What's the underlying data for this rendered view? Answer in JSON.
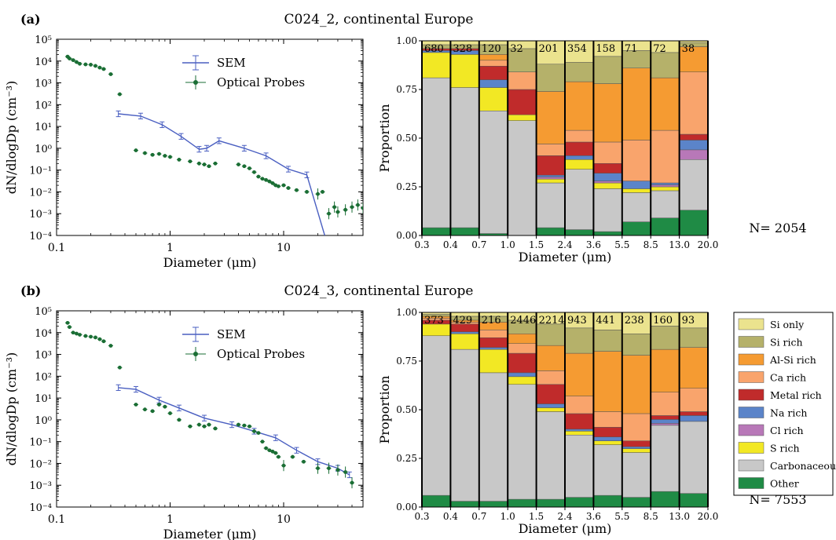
{
  "legend_title": "",
  "chart_data": [
    {
      "panel": "(a)",
      "title": "C024_2, continental Europe",
      "type": "line",
      "xlabel": "Diameter (μm)",
      "ylabel": "dN/dlogDp (cm⁻³)",
      "xscale": "log",
      "yscale": "log",
      "xlim": [
        0.1,
        50
      ],
      "ylim": [
        0.0001,
        100000
      ],
      "xticks": [
        "0.1",
        "1",
        "10"
      ],
      "yticks": [
        "10⁻⁴",
        "10⁻³",
        "10⁻²",
        "10⁻¹",
        "10⁰",
        "10¹",
        "10²",
        "10³",
        "10⁴",
        "10⁵"
      ],
      "legend": "top-center",
      "series": [
        {
          "name": "SEM",
          "color": "#4a5fc1",
          "x": [
            0.35,
            0.55,
            0.85,
            1.25,
            1.8,
            2.1,
            2.7,
            4.5,
            7,
            11,
            16,
            23
          ],
          "y": [
            38,
            30,
            12,
            3.5,
            0.9,
            1.0,
            2.2,
            1.0,
            0.45,
            0.11,
            0.06,
            0.0001
          ]
        },
        {
          "name": "Optical Probes",
          "color": "#1a6e34",
          "x": [
            0.125,
            0.13,
            0.14,
            0.15,
            0.16,
            0.18,
            0.2,
            0.22,
            0.24,
            0.26,
            0.3,
            0.36,
            0.5,
            0.6,
            0.7,
            0.8,
            0.9,
            1.0,
            1.2,
            1.5,
            1.8,
            2.0,
            2.2,
            2.5,
            4.0,
            4.5,
            5.0,
            5.5,
            6.0,
            6.5,
            7.0,
            7.5,
            8.0,
            8.5,
            9.0,
            10,
            11,
            13,
            16,
            20,
            22,
            25,
            28,
            30,
            35,
            40,
            45,
            50
          ],
          "y": [
            16000,
            13000,
            11000,
            9000,
            7500,
            7000,
            6800,
            6000,
            5000,
            4300,
            2500,
            300,
            0.8,
            0.6,
            0.5,
            0.55,
            0.45,
            0.4,
            0.3,
            0.25,
            0.2,
            0.18,
            0.15,
            0.2,
            0.18,
            0.15,
            0.12,
            0.08,
            0.05,
            0.04,
            0.035,
            0.03,
            0.025,
            0.02,
            0.018,
            0.02,
            0.015,
            0.012,
            0.01,
            0.008,
            0.01,
            0.001,
            0.002,
            0.0012,
            0.0015,
            0.002,
            0.0025,
            0.0018
          ]
        }
      ]
    },
    {
      "panel": "(a)",
      "type": "bar",
      "stacked": true,
      "xlabel": "Diameter (μm)",
      "ylabel": "Proportion",
      "ylim": [
        0,
        1
      ],
      "yticks": [
        "0.00",
        "0.25",
        "0.50",
        "0.75",
        "1.00"
      ],
      "bin_edges": [
        "0.3",
        "0.4",
        "0.7",
        "1.0",
        "1.5",
        "2.4",
        "3.6",
        "5.5",
        "8.5",
        "13.0",
        "20.0"
      ],
      "counts": [
        "680",
        "328",
        "120",
        "32",
        "201",
        "354",
        "158",
        "71",
        "72",
        "38"
      ],
      "n_label": "N= 2054",
      "series": [
        {
          "name": "Other",
          "color": "#1f8b45",
          "values": [
            0.04,
            0.04,
            0.01,
            0,
            0.04,
            0.03,
            0.02,
            0.07,
            0.09,
            0.13
          ]
        },
        {
          "name": "Carbonaceous",
          "color": "#c8c8c8",
          "values": [
            0.77,
            0.72,
            0.63,
            0.59,
            0.23,
            0.31,
            0.22,
            0.15,
            0.14,
            0.26
          ]
        },
        {
          "name": "S rich",
          "color": "#f2e824",
          "values": [
            0.13,
            0.17,
            0.12,
            0.03,
            0.02,
            0.05,
            0.03,
            0.02,
            0.02,
            0
          ]
        },
        {
          "name": "Cl rich",
          "color": "#b878b8",
          "values": [
            0,
            0,
            0,
            0,
            0.01,
            0,
            0.01,
            0,
            0.01,
            0.05
          ]
        },
        {
          "name": "Na rich",
          "color": "#5b84c9",
          "values": [
            0.01,
            0.02,
            0.04,
            0,
            0.01,
            0.02,
            0.04,
            0.04,
            0.01,
            0.05
          ]
        },
        {
          "name": "Metal rich",
          "color": "#c02b2b",
          "values": [
            0.01,
            0.01,
            0.07,
            0.13,
            0.1,
            0.07,
            0.05,
            0,
            0,
            0.03
          ]
        },
        {
          "name": "Ca rich",
          "color": "#f9a46c",
          "values": [
            0,
            0,
            0.03,
            0.09,
            0.06,
            0.06,
            0.11,
            0.21,
            0.27,
            0.32
          ]
        },
        {
          "name": "Al-Si rich",
          "color": "#f59b32",
          "values": [
            0,
            0,
            0.03,
            0,
            0.27,
            0.25,
            0.3,
            0.37,
            0.27,
            0.13
          ]
        },
        {
          "name": "Si rich",
          "color": "#b5b16a",
          "values": [
            0.02,
            0.02,
            0.05,
            0.12,
            0.14,
            0.1,
            0.14,
            0.09,
            0.13,
            0.02
          ]
        },
        {
          "name": "Si only",
          "color": "#ebe38e",
          "values": [
            0.02,
            0.02,
            0.02,
            0.04,
            0.12,
            0.11,
            0.08,
            0.05,
            0.06,
            0.01
          ]
        }
      ]
    },
    {
      "panel": "(b)",
      "title": "C024_3, continental Europe",
      "type": "line",
      "xlabel": "Diameter (μm)",
      "ylabel": "dN/dlogDp (cm⁻³)",
      "xscale": "log",
      "yscale": "log",
      "xlim": [
        0.1,
        50
      ],
      "ylim": [
        0.0001,
        100000
      ],
      "xticks": [
        "0.1",
        "1",
        "10"
      ],
      "yticks": [
        "10⁻⁴",
        "10⁻³",
        "10⁻²",
        "10⁻¹",
        "10⁰",
        "10¹",
        "10²",
        "10³",
        "10⁴",
        "10⁵"
      ],
      "legend": "top-center",
      "series": [
        {
          "name": "SEM",
          "color": "#4a5fc1",
          "x": [
            0.35,
            0.5,
            0.8,
            1.2,
            2.0,
            3.5,
            5.5,
            8.5,
            13,
            20,
            30,
            38
          ],
          "y": [
            30,
            25,
            8,
            3.5,
            1.2,
            0.6,
            0.3,
            0.15,
            0.04,
            0.012,
            0.006,
            0.003
          ]
        },
        {
          "name": "Optical Probes",
          "color": "#1a6e34",
          "x": [
            0.125,
            0.13,
            0.14,
            0.15,
            0.16,
            0.18,
            0.2,
            0.22,
            0.24,
            0.26,
            0.3,
            0.36,
            0.5,
            0.6,
            0.7,
            0.8,
            0.9,
            1.0,
            1.2,
            1.5,
            1.8,
            2.0,
            2.2,
            2.5,
            4.0,
            4.5,
            5.0,
            5.5,
            6.0,
            6.5,
            7.0,
            7.5,
            8.0,
            8.5,
            9.0,
            10,
            12,
            15,
            20,
            25,
            30,
            35,
            40
          ],
          "y": [
            28000,
            18000,
            10000,
            9000,
            8000,
            7000,
            6500,
            6000,
            5000,
            4000,
            2500,
            250,
            5,
            3,
            2.5,
            5,
            4,
            2,
            1.0,
            0.5,
            0.6,
            0.5,
            0.6,
            0.4,
            0.6,
            0.55,
            0.5,
            0.3,
            0.25,
            0.1,
            0.05,
            0.04,
            0.035,
            0.03,
            0.02,
            0.008,
            0.02,
            0.012,
            0.006,
            0.006,
            0.005,
            0.004,
            0.0013
          ]
        }
      ]
    },
    {
      "panel": "(b)",
      "type": "bar",
      "stacked": true,
      "xlabel": "Diameter (μm)",
      "ylabel": "Proportion",
      "ylim": [
        0,
        1
      ],
      "yticks": [
        "0.00",
        "0.25",
        "0.50",
        "0.75",
        "1.00"
      ],
      "bin_edges": [
        "0.3",
        "0.4",
        "0.7",
        "1.0",
        "1.5",
        "2.4",
        "3.6",
        "5.5",
        "8.5",
        "13.0",
        "20.0"
      ],
      "counts": [
        "373",
        "429",
        "216",
        "2446",
        "2214",
        "943",
        "441",
        "238",
        "160",
        "93"
      ],
      "n_label": "N= 7553",
      "series": [
        {
          "name": "Other",
          "color": "#1f8b45",
          "values": [
            0.06,
            0.03,
            0.03,
            0.04,
            0.04,
            0.05,
            0.06,
            0.05,
            0.08,
            0.07
          ]
        },
        {
          "name": "Carbonaceous",
          "color": "#c8c8c8",
          "values": [
            0.82,
            0.78,
            0.66,
            0.59,
            0.45,
            0.32,
            0.26,
            0.23,
            0.34,
            0.37
          ]
        },
        {
          "name": "S rich",
          "color": "#f2e824",
          "values": [
            0.06,
            0.08,
            0.12,
            0.04,
            0.02,
            0.02,
            0.02,
            0.02,
            0,
            0
          ]
        },
        {
          "name": "Cl rich",
          "color": "#b878b8",
          "values": [
            0,
            0,
            0,
            0,
            0,
            0,
            0,
            0,
            0.01,
            0
          ]
        },
        {
          "name": "Na rich",
          "color": "#5b84c9",
          "values": [
            0,
            0.01,
            0.01,
            0.02,
            0.02,
            0.01,
            0.02,
            0.01,
            0.02,
            0.03
          ]
        },
        {
          "name": "Metal rich",
          "color": "#c02b2b",
          "values": [
            0.02,
            0.04,
            0.05,
            0.1,
            0.1,
            0.08,
            0.05,
            0.03,
            0.02,
            0.02
          ]
        },
        {
          "name": "Ca rich",
          "color": "#f9a46c",
          "values": [
            0.01,
            0.01,
            0.04,
            0.05,
            0.07,
            0.09,
            0.08,
            0.14,
            0.12,
            0.12
          ]
        },
        {
          "name": "Al-Si rich",
          "color": "#f59b32",
          "values": [
            0.01,
            0.01,
            0.04,
            0.05,
            0.13,
            0.22,
            0.31,
            0.3,
            0.22,
            0.21
          ]
        },
        {
          "name": "Si rich",
          "color": "#b5b16a",
          "values": [
            0.01,
            0.02,
            0.03,
            0.07,
            0.11,
            0.13,
            0.11,
            0.11,
            0.12,
            0.1
          ]
        },
        {
          "name": "Si only",
          "color": "#ebe38e",
          "values": [
            0.01,
            0.02,
            0.02,
            0.04,
            0.06,
            0.08,
            0.09,
            0.11,
            0.07,
            0.08
          ]
        }
      ]
    }
  ]
}
